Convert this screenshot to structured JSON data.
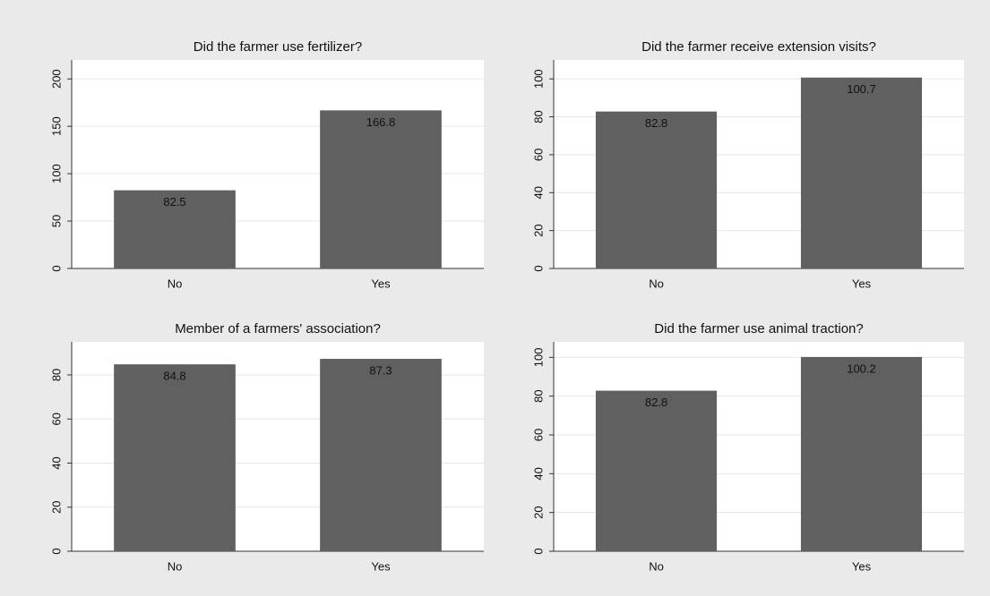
{
  "chart_data": [
    {
      "type": "bar",
      "title": "Did the farmer use fertilizer?",
      "categories": [
        "No",
        "Yes"
      ],
      "values": [
        82.5,
        166.8
      ],
      "color": "#606060",
      "ylim": [
        0,
        220
      ],
      "yticks": [
        0,
        50,
        100,
        150,
        200
      ],
      "grid": true
    },
    {
      "type": "bar",
      "title": "Did the farmer receive extension visits?",
      "categories": [
        "No",
        "Yes"
      ],
      "values": [
        82.8,
        100.7
      ],
      "color": "#606060",
      "ylim": [
        0,
        110
      ],
      "yticks": [
        0,
        20,
        40,
        60,
        80,
        100
      ],
      "grid": true
    },
    {
      "type": "bar",
      "title": "Member of a farmers' association?",
      "categories": [
        "No",
        "Yes"
      ],
      "values": [
        84.8,
        87.3
      ],
      "color": "#606060",
      "ylim": [
        0,
        95
      ],
      "yticks": [
        0,
        20,
        40,
        60,
        80
      ],
      "grid": true
    },
    {
      "type": "bar",
      "title": "Did the farmer use animal traction?",
      "categories": [
        "No",
        "Yes"
      ],
      "values": [
        82.8,
        100.2
      ],
      "color": "#606060",
      "ylim": [
        0,
        108
      ],
      "yticks": [
        0,
        20,
        40,
        60,
        80,
        100
      ],
      "grid": true
    }
  ]
}
